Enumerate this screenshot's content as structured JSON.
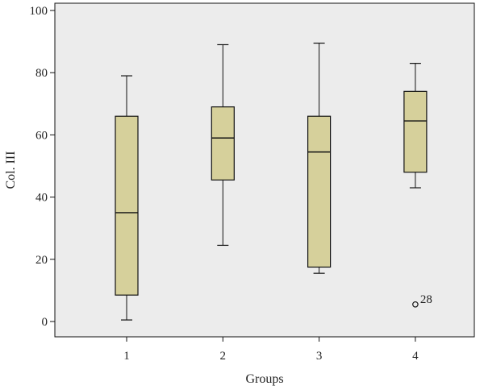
{
  "chart_data": {
    "type": "boxplot",
    "xlabel": "Groups",
    "ylabel": "Col. III",
    "ylim": [
      0,
      100
    ],
    "yticks": [
      0,
      20,
      40,
      60,
      80,
      100
    ],
    "categories": [
      "1",
      "2",
      "3",
      "4"
    ],
    "boxes": [
      {
        "category": "1",
        "min": 0.5,
        "q1": 8.5,
        "median": 35,
        "q3": 66,
        "max": 79
      },
      {
        "category": "2",
        "min": 24.5,
        "q1": 45.5,
        "median": 59,
        "q3": 69,
        "max": 89
      },
      {
        "category": "3",
        "min": 15.5,
        "q1": 17.5,
        "median": 54.5,
        "q3": 66,
        "max": 89.5
      },
      {
        "category": "4",
        "min": 43,
        "q1": 48,
        "median": 64.5,
        "q3": 74,
        "max": 83
      }
    ],
    "outliers": [
      {
        "category": "4",
        "value": 5.5,
        "label": "28"
      }
    ],
    "colors": {
      "plot_background": "#ececec",
      "box_fill": "#d6d09b",
      "stroke": "#111111"
    },
    "grid": false
  }
}
